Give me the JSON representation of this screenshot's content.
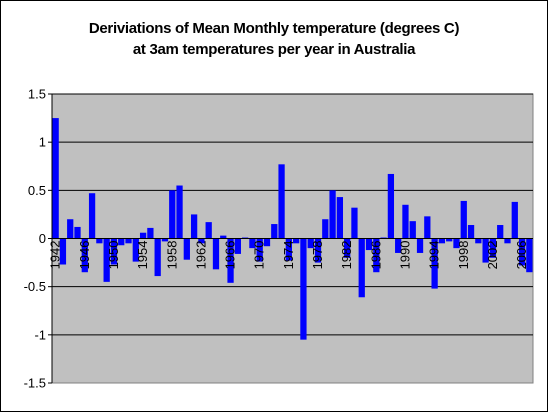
{
  "chart_data": {
    "type": "bar",
    "title_lines": [
      "Deriviations of Mean Monthly temperature (degrees C)",
      "at 3am temperatures per year in Australia"
    ],
    "xlabel": "",
    "ylabel": "",
    "ylim": [
      -1.5,
      1.5
    ],
    "y_ticks": [
      "1.5",
      "1",
      "0.5",
      "0",
      "-0.5",
      "-1",
      "-1.5"
    ],
    "x_tick_labels": [
      "1942",
      "1946",
      "1950",
      "1954",
      "1958",
      "1962",
      "1966",
      "1970",
      "1974",
      "1978",
      "1982",
      "1986",
      "1990",
      "1994",
      "1998",
      "2002",
      "2006"
    ],
    "grid": true,
    "legend": "none",
    "bar_color": "#0000FF",
    "plot_background": "#C0C0C0",
    "x": [
      1942,
      1943,
      1944,
      1945,
      1946,
      1947,
      1948,
      1949,
      1950,
      1951,
      1952,
      1953,
      1954,
      1955,
      1956,
      1957,
      1958,
      1959,
      1960,
      1961,
      1962,
      1963,
      1964,
      1965,
      1966,
      1967,
      1968,
      1969,
      1970,
      1971,
      1972,
      1973,
      1974,
      1975,
      1976,
      1977,
      1978,
      1979,
      1980,
      1981,
      1982,
      1983,
      1984,
      1985,
      1986,
      1987,
      1988,
      1989,
      1990,
      1991,
      1992,
      1993,
      1994,
      1995,
      1996,
      1997,
      1998,
      1999,
      2000,
      2001,
      2002,
      2003,
      2004,
      2005,
      2006,
      2007
    ],
    "values": [
      1.25,
      -0.27,
      0.2,
      0.12,
      -0.35,
      0.47,
      -0.05,
      -0.45,
      -0.27,
      -0.07,
      -0.05,
      -0.24,
      0.06,
      0.11,
      -0.39,
      -0.03,
      0.5,
      0.55,
      -0.22,
      0.25,
      -0.05,
      0.17,
      -0.32,
      0.03,
      -0.46,
      -0.16,
      0.01,
      -0.1,
      -0.24,
      -0.08,
      0.15,
      0.77,
      -0.23,
      -0.05,
      -1.05,
      -0.1,
      -0.25,
      0.2,
      0.5,
      0.43,
      -0.2,
      0.32,
      -0.61,
      -0.12,
      -0.35,
      0.01,
      0.67,
      -0.15,
      0.35,
      0.18,
      -0.15,
      0.23,
      -0.52,
      -0.05,
      -0.03,
      -0.1,
      0.39,
      0.14,
      -0.05,
      -0.25,
      -0.2,
      0.14,
      -0.05,
      0.38,
      -0.28,
      -0.35
    ]
  }
}
